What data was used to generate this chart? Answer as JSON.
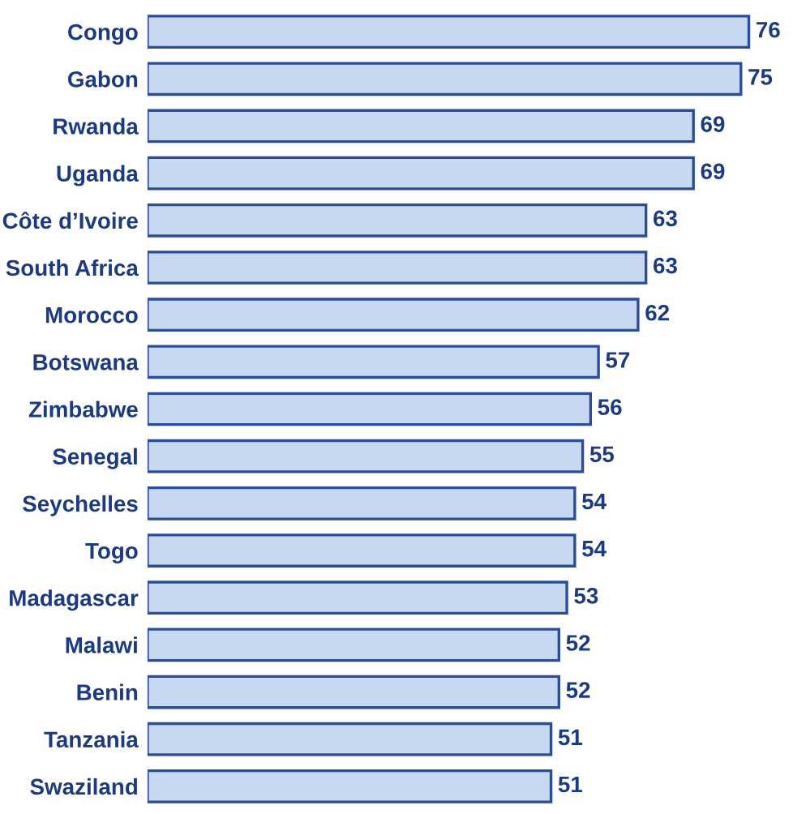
{
  "chart_data": {
    "type": "bar",
    "orientation": "horizontal",
    "categories": [
      "Congo",
      "Gabon",
      "Rwanda",
      "Uganda",
      "Côte d’Ivoire",
      "South Africa",
      "Morocco",
      "Botswana",
      "Zimbabwe",
      "Senegal",
      "Seychelles",
      "Togo",
      "Madagascar",
      "Malawi",
      "Benin",
      "Tanzania",
      "Swaziland"
    ],
    "values": [
      76,
      75,
      69,
      69,
      63,
      63,
      62,
      57,
      56,
      55,
      54,
      54,
      53,
      52,
      52,
      51,
      51
    ],
    "color": "#c6d9f1",
    "data_labels": true,
    "grid": false,
    "legend": false
  }
}
